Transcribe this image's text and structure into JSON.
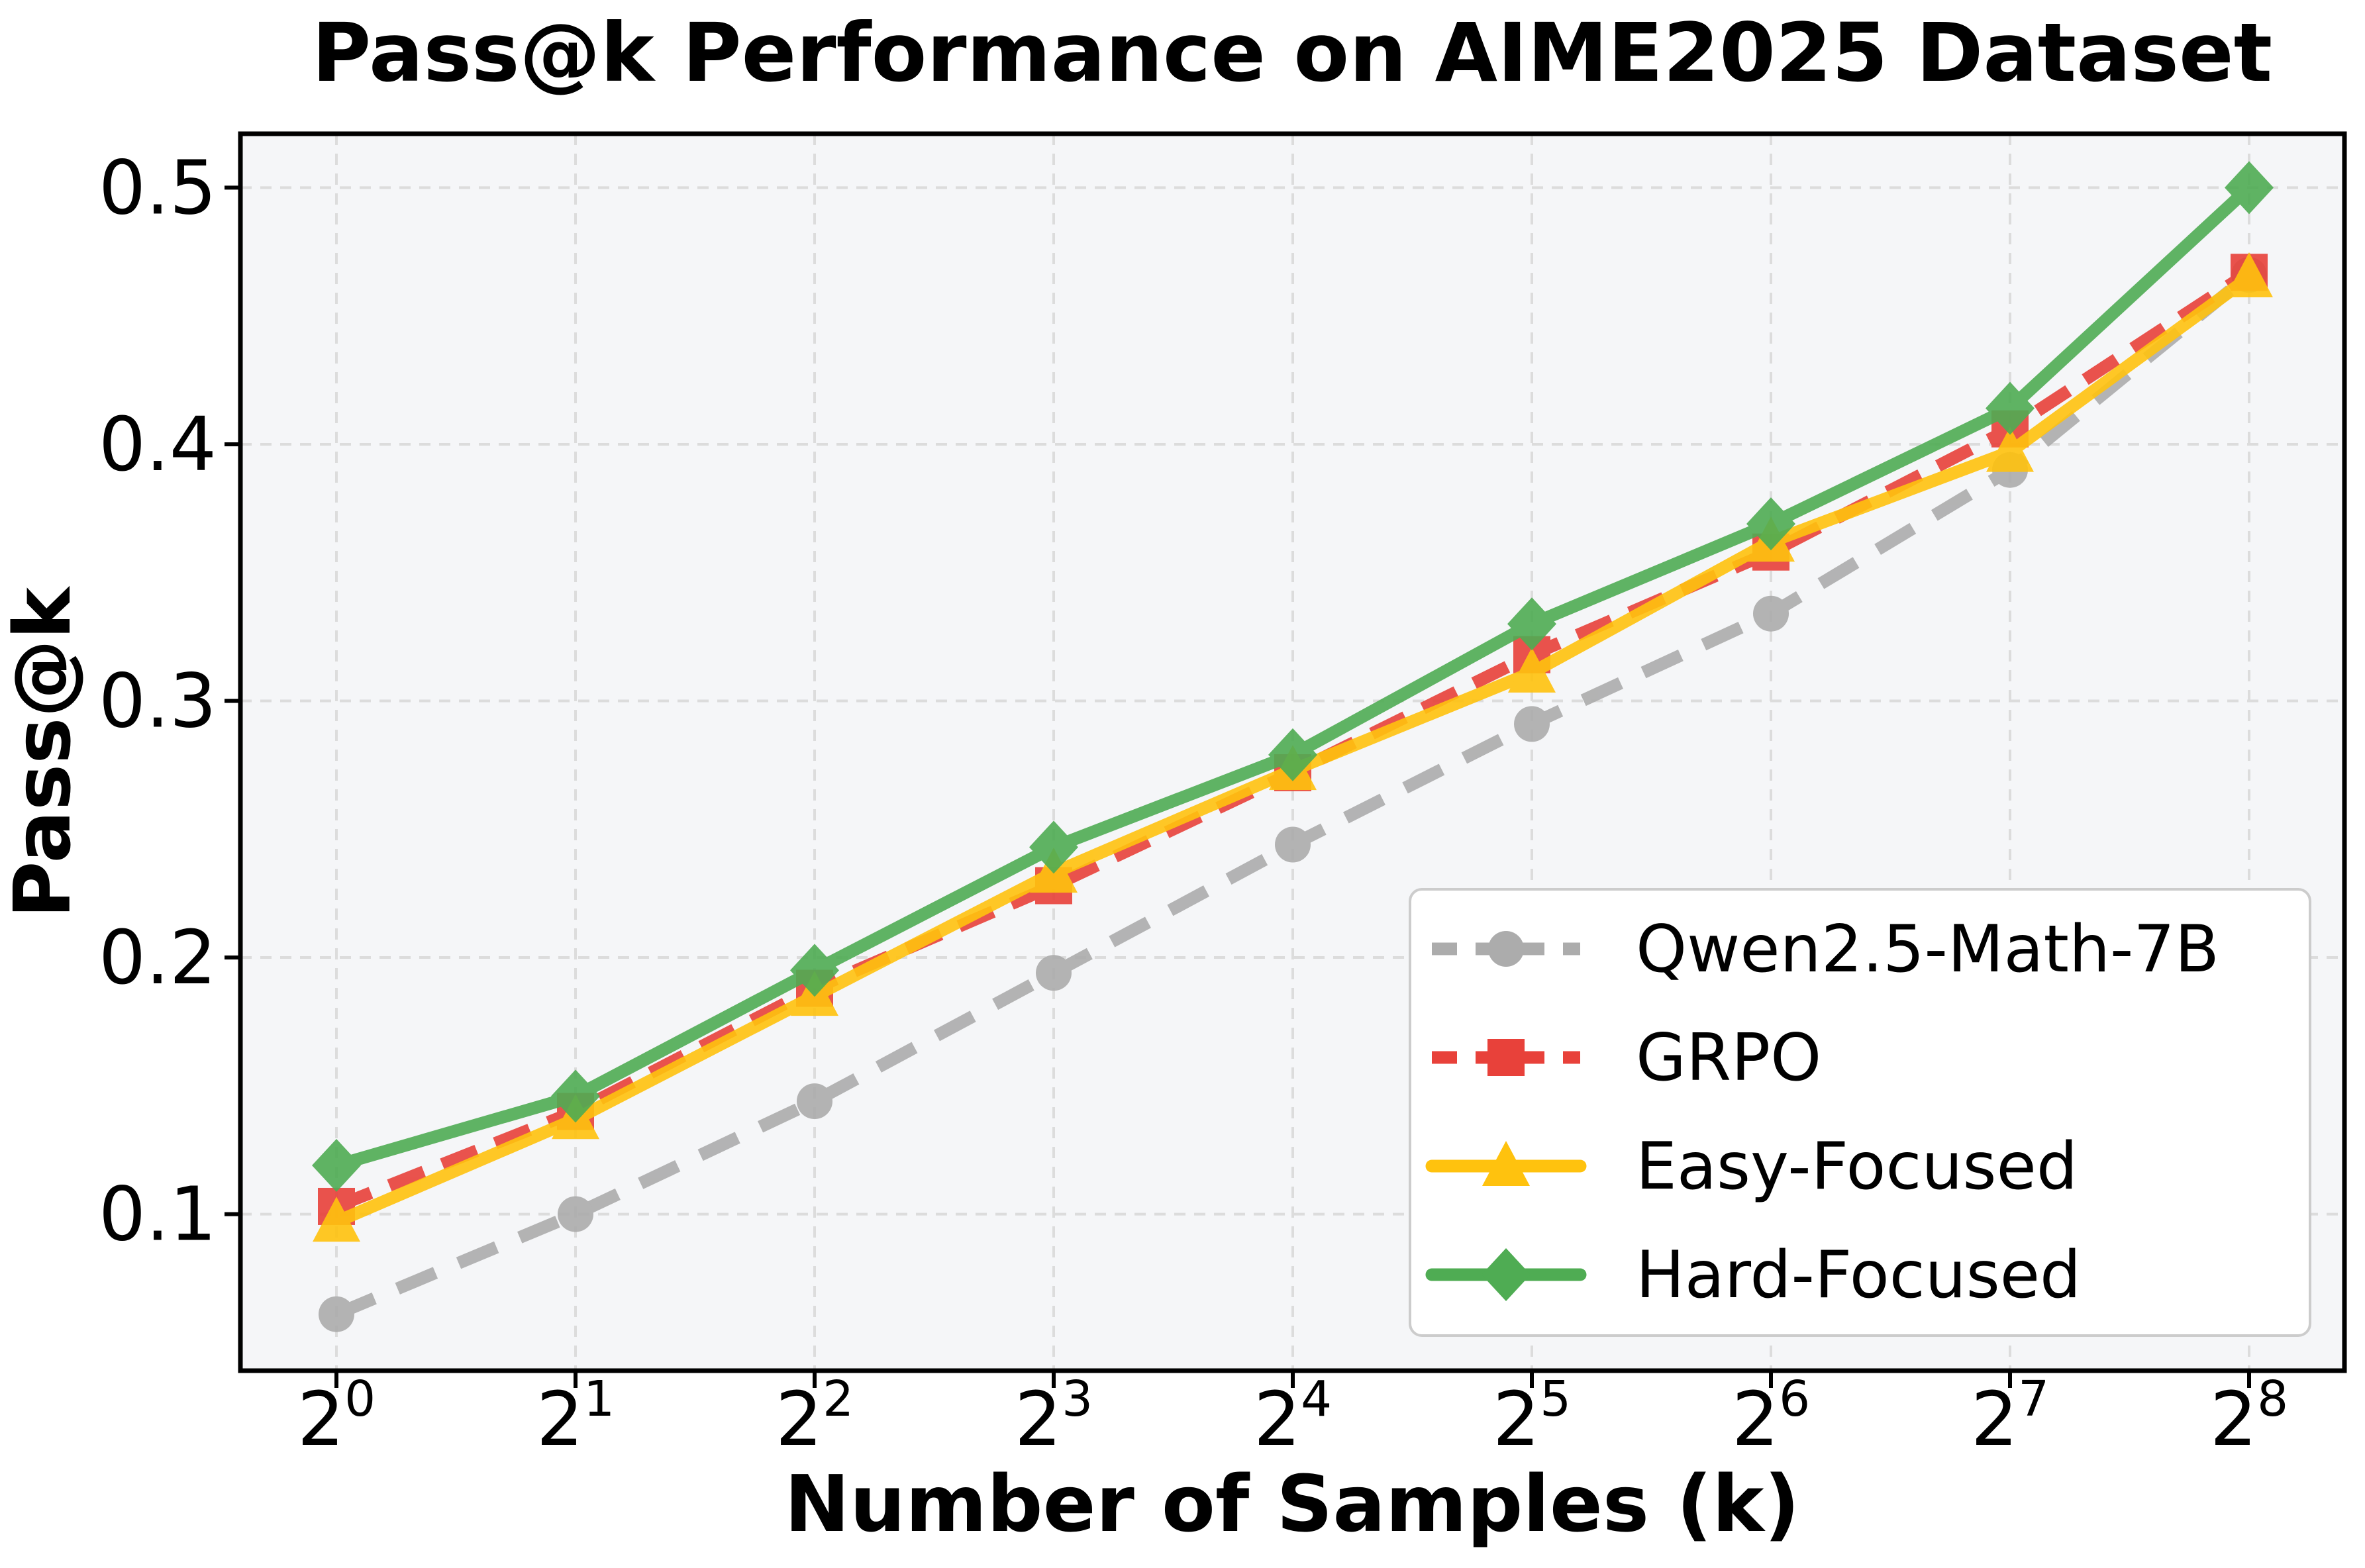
{
  "chart_data": {
    "type": "line",
    "title": "Pass@k Performance on AIME2025 Dataset",
    "xlabel": "Number of Samples (k)",
    "ylabel": "Pass@k",
    "x": [
      1,
      2,
      4,
      8,
      16,
      32,
      64,
      128,
      256
    ],
    "x_scale": "log2",
    "x_tick_base": "2",
    "x_tick_exponents": [
      "0",
      "1",
      "2",
      "3",
      "4",
      "5",
      "6",
      "7",
      "8"
    ],
    "y_tick_labels": [
      "0.1",
      "0.2",
      "0.3",
      "0.4",
      "0.5"
    ],
    "y_tick_values": [
      0.1,
      0.2,
      0.3,
      0.4,
      0.5
    ],
    "ylim": [
      0.039,
      0.521
    ],
    "grid": {
      "shown": true,
      "style": "dashed",
      "axes": "both"
    },
    "legend": {
      "position": "lower-right-inside",
      "background": "#FFFFFF",
      "border_color": "#CCCCCC"
    },
    "series": [
      {
        "name": "Qwen2.5-Math-7B",
        "color": "#ACACAC",
        "line_style": "dashed",
        "marker": "circle",
        "values": [
          0.061,
          0.1,
          0.144,
          0.194,
          0.244,
          0.291,
          0.334,
          0.39,
          0.466
        ]
      },
      {
        "name": "GRPO",
        "color": "#E8413A",
        "line_style": "dashed",
        "marker": "square",
        "values": [
          0.103,
          0.14,
          0.188,
          0.228,
          0.272,
          0.318,
          0.358,
          0.406,
          0.467
        ]
      },
      {
        "name": "Easy-Focused",
        "color": "#FFC20E",
        "line_style": "solid",
        "marker": "triangle",
        "values": [
          0.097,
          0.137,
          0.185,
          0.233,
          0.273,
          0.311,
          0.362,
          0.397,
          0.465
        ]
      },
      {
        "name": "Hard-Focused",
        "color": "#4FAC53",
        "line_style": "solid",
        "marker": "diamond",
        "values": [
          0.119,
          0.146,
          0.195,
          0.243,
          0.279,
          0.33,
          0.369,
          0.414,
          0.5
        ]
      }
    ],
    "colors": {
      "figure_bg": "#FFFFFF",
      "plot_bg": "#F5F6F8",
      "grid": "#DCDCDC",
      "spine": "#000000",
      "text": "#000000"
    }
  }
}
